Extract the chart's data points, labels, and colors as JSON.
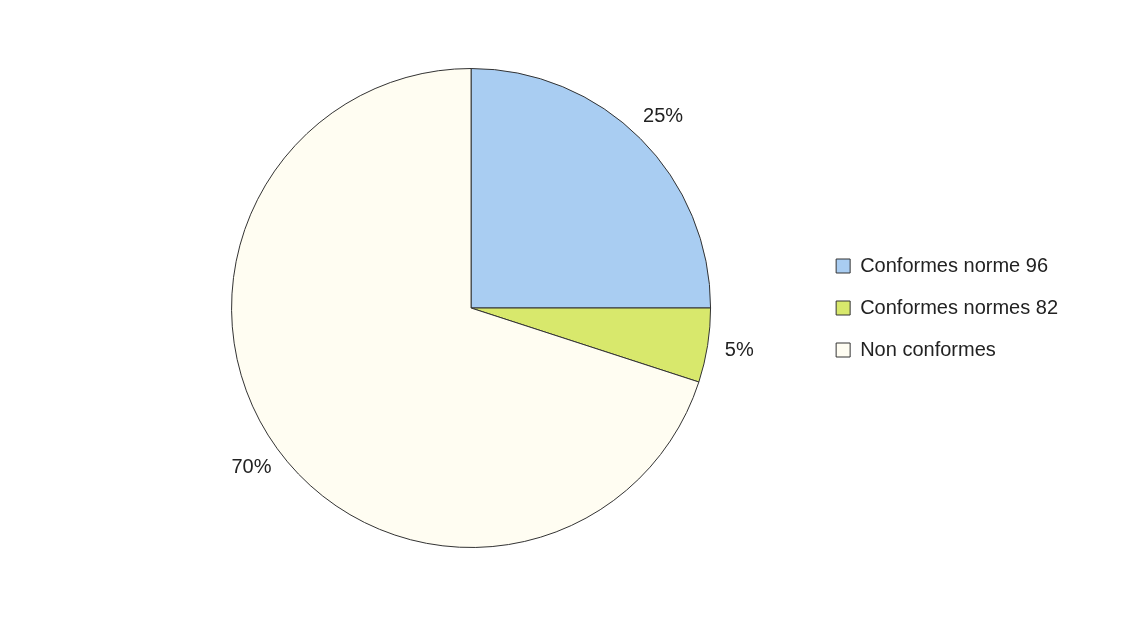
{
  "chart_data": {
    "type": "pie",
    "categories": [
      "Conformes norme 96",
      "Conformes normes 82",
      "Non conformes"
    ],
    "values": [
      25,
      5,
      70
    ],
    "colors": [
      "#a9cdf2",
      "#d8e86c",
      "#fffdf2"
    ],
    "value_labels": [
      "25%",
      "5%",
      "70%"
    ],
    "legend": "right"
  }
}
